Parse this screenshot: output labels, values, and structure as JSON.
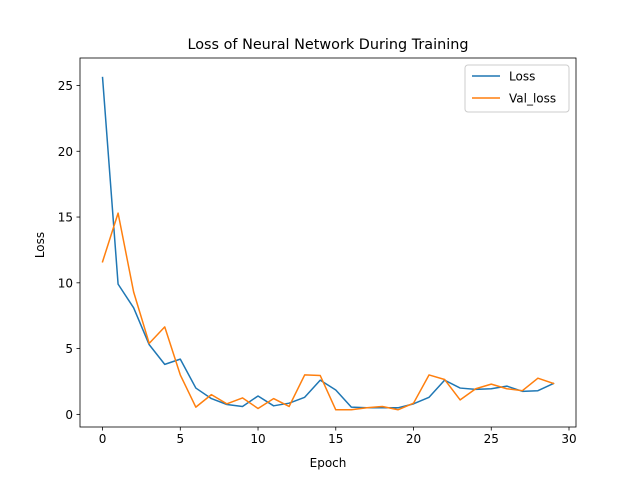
{
  "chart_data": {
    "type": "line",
    "title": "Loss of Neural Network During Training",
    "xlabel": "Epoch",
    "ylabel": "Loss",
    "xlim": [
      -1.45,
      30.45
    ],
    "ylim": [
      -0.96,
      27.09
    ],
    "xticks": [
      0,
      5,
      10,
      15,
      20,
      25,
      30
    ],
    "yticks": [
      0,
      5,
      10,
      15,
      20,
      25
    ],
    "grid": false,
    "legend_position": "top-right",
    "x": [
      0,
      1,
      2,
      3,
      4,
      5,
      6,
      7,
      8,
      9,
      10,
      11,
      12,
      13,
      14,
      15,
      16,
      17,
      18,
      19,
      20,
      21,
      22,
      23,
      24,
      25,
      26,
      27,
      28,
      29
    ],
    "series": [
      {
        "name": "Loss",
        "color": "#1f77b4",
        "values": [
          25.6,
          9.9,
          8.1,
          5.3,
          3.8,
          4.2,
          2.0,
          1.2,
          0.75,
          0.6,
          1.4,
          0.65,
          0.85,
          1.3,
          2.6,
          1.85,
          0.55,
          0.5,
          0.5,
          0.5,
          0.8,
          1.3,
          2.6,
          2.0,
          1.9,
          1.95,
          2.15,
          1.75,
          1.8,
          2.35
        ]
      },
      {
        "name": "Val_loss",
        "color": "#ff7f0e",
        "values": [
          11.6,
          15.3,
          9.3,
          5.4,
          6.65,
          3.0,
          0.55,
          1.5,
          0.8,
          1.25,
          0.45,
          1.2,
          0.6,
          3.0,
          2.95,
          0.35,
          0.35,
          0.5,
          0.6,
          0.35,
          0.85,
          3.0,
          2.65,
          1.1,
          1.95,
          2.3,
          1.95,
          1.8,
          2.75,
          2.35
        ]
      }
    ]
  }
}
